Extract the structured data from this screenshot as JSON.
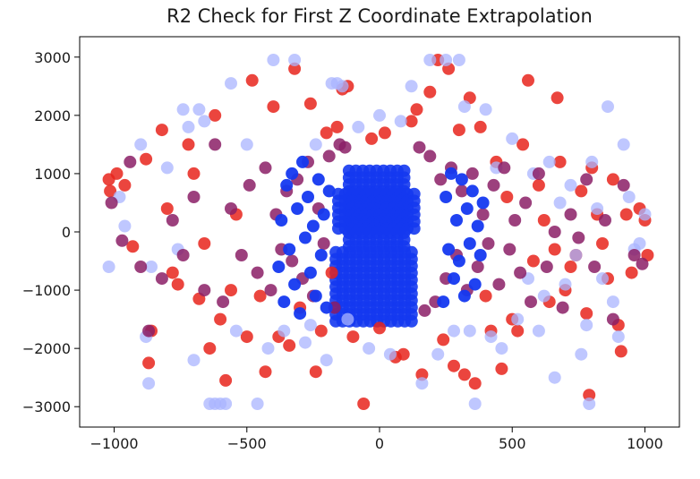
{
  "chart_data": {
    "type": "scatter",
    "title": "R2 Check for First Z Coordinate Extrapolation",
    "xlabel": "",
    "ylabel": "",
    "xlim": [
      -1130,
      1130
    ],
    "ylim": [
      -3350,
      3350
    ],
    "xticks": [
      -1000,
      -500,
      0,
      500,
      1000
    ],
    "yticks": [
      -3000,
      -2000,
      -1000,
      0,
      1000,
      2000,
      3000
    ],
    "xtick_labels": [
      "−1000",
      "−500",
      "0",
      "500",
      "1000"
    ],
    "ytick_labels": [
      "−3000",
      "−2000",
      "−1000",
      "0",
      "1000",
      "2000",
      "3000"
    ],
    "grid": false,
    "legend": "none",
    "colors": {
      "series_a": "#e8251c",
      "series_b": "#1438f0",
      "series_b_faint": "#aab4ff",
      "overlap": "#8b1f66"
    },
    "series": [
      {
        "color": "#e8251c",
        "alpha": 0.85,
        "points": [
          [
            -1020,
            900
          ],
          [
            -1015,
            700
          ],
          [
            -990,
            1000
          ],
          [
            -960,
            800
          ],
          [
            -930,
            -250
          ],
          [
            -880,
            1250
          ],
          [
            -860,
            -1700
          ],
          [
            -870,
            -2250
          ],
          [
            -820,
            1750
          ],
          [
            -800,
            400
          ],
          [
            -780,
            -700
          ],
          [
            -760,
            -900
          ],
          [
            -720,
            1500
          ],
          [
            -700,
            1000
          ],
          [
            -680,
            -1150
          ],
          [
            -660,
            -200
          ],
          [
            -640,
            -2000
          ],
          [
            -620,
            2000
          ],
          [
            -600,
            -1500
          ],
          [
            -580,
            -2550
          ],
          [
            -560,
            -1000
          ],
          [
            -540,
            300
          ],
          [
            -500,
            -1800
          ],
          [
            -480,
            2600
          ],
          [
            -450,
            -1100
          ],
          [
            -430,
            -2400
          ],
          [
            -400,
            2150
          ],
          [
            -380,
            -1800
          ],
          [
            -340,
            -1950
          ],
          [
            -320,
            2800
          ],
          [
            -300,
            -1300
          ],
          [
            -260,
            2200
          ],
          [
            -240,
            -2400
          ],
          [
            -220,
            -1700
          ],
          [
            -200,
            1700
          ],
          [
            -180,
            -700
          ],
          [
            -160,
            1800
          ],
          [
            -140,
            2450
          ],
          [
            -120,
            2500
          ],
          [
            -100,
            -1800
          ],
          [
            -60,
            -2950
          ],
          [
            -30,
            1600
          ],
          [
            0,
            -1650
          ],
          [
            20,
            1700
          ],
          [
            60,
            -2150
          ],
          [
            90,
            -2100
          ],
          [
            120,
            1900
          ],
          [
            140,
            2100
          ],
          [
            160,
            -2450
          ],
          [
            190,
            2400
          ],
          [
            220,
            2950
          ],
          [
            240,
            -1850
          ],
          [
            260,
            2800
          ],
          [
            280,
            -2300
          ],
          [
            300,
            1750
          ],
          [
            320,
            -2450
          ],
          [
            340,
            2300
          ],
          [
            360,
            -2600
          ],
          [
            380,
            1800
          ],
          [
            400,
            -1100
          ],
          [
            420,
            -1700
          ],
          [
            440,
            1200
          ],
          [
            460,
            -2350
          ],
          [
            480,
            600
          ],
          [
            500,
            -1500
          ],
          [
            520,
            -1700
          ],
          [
            540,
            1500
          ],
          [
            560,
            2600
          ],
          [
            580,
            -500
          ],
          [
            600,
            800
          ],
          [
            620,
            200
          ],
          [
            640,
            -1200
          ],
          [
            660,
            -300
          ],
          [
            670,
            2300
          ],
          [
            680,
            1200
          ],
          [
            700,
            -1000
          ],
          [
            720,
            -600
          ],
          [
            740,
            -400
          ],
          [
            760,
            700
          ],
          [
            780,
            -1400
          ],
          [
            790,
            -2800
          ],
          [
            800,
            1100
          ],
          [
            820,
            300
          ],
          [
            840,
            -200
          ],
          [
            860,
            -800
          ],
          [
            880,
            900
          ],
          [
            900,
            -1600
          ],
          [
            910,
            -2050
          ],
          [
            930,
            300
          ],
          [
            950,
            -700
          ],
          [
            980,
            400
          ],
          [
            1000,
            200
          ],
          [
            1010,
            -400
          ]
        ]
      },
      {
        "color": "#aab4ff",
        "alpha": 0.75,
        "points": [
          [
            -1020,
            -600
          ],
          [
            -980,
            600
          ],
          [
            -960,
            100
          ],
          [
            -900,
            1500
          ],
          [
            -880,
            -1800
          ],
          [
            -870,
            -2600
          ],
          [
            -860,
            -600
          ],
          [
            -800,
            1100
          ],
          [
            -760,
            -300
          ],
          [
            -740,
            2100
          ],
          [
            -720,
            1800
          ],
          [
            -700,
            -2200
          ],
          [
            -680,
            2100
          ],
          [
            -660,
            1900
          ],
          [
            -640,
            -2950
          ],
          [
            -620,
            -2950
          ],
          [
            -600,
            -2950
          ],
          [
            -580,
            -2950
          ],
          [
            -560,
            2550
          ],
          [
            -540,
            -1700
          ],
          [
            -500,
            1500
          ],
          [
            -460,
            -2950
          ],
          [
            -420,
            -2000
          ],
          [
            -400,
            2950
          ],
          [
            -360,
            -1700
          ],
          [
            -320,
            2950
          ],
          [
            -280,
            -1900
          ],
          [
            -260,
            -1600
          ],
          [
            -240,
            1500
          ],
          [
            -200,
            -2200
          ],
          [
            -180,
            2550
          ],
          [
            -160,
            2550
          ],
          [
            -140,
            2500
          ],
          [
            -120,
            -1500
          ],
          [
            -80,
            1800
          ],
          [
            -40,
            -2000
          ],
          [
            0,
            2000
          ],
          [
            40,
            -2100
          ],
          [
            80,
            1900
          ],
          [
            120,
            2500
          ],
          [
            160,
            -2600
          ],
          [
            190,
            2950
          ],
          [
            220,
            -2100
          ],
          [
            250,
            2950
          ],
          [
            280,
            -1700
          ],
          [
            300,
            2950
          ],
          [
            320,
            2150
          ],
          [
            340,
            -1700
          ],
          [
            360,
            -2950
          ],
          [
            400,
            2100
          ],
          [
            420,
            -1800
          ],
          [
            440,
            1100
          ],
          [
            460,
            -2000
          ],
          [
            500,
            1600
          ],
          [
            520,
            -1500
          ],
          [
            560,
            -800
          ],
          [
            580,
            1000
          ],
          [
            600,
            -1700
          ],
          [
            620,
            -1100
          ],
          [
            640,
            1200
          ],
          [
            660,
            -2500
          ],
          [
            680,
            500
          ],
          [
            700,
            -900
          ],
          [
            720,
            800
          ],
          [
            740,
            -400
          ],
          [
            760,
            -2100
          ],
          [
            780,
            -1600
          ],
          [
            790,
            -2950
          ],
          [
            800,
            1200
          ],
          [
            820,
            400
          ],
          [
            840,
            -800
          ],
          [
            860,
            2150
          ],
          [
            880,
            -1200
          ],
          [
            900,
            -1800
          ],
          [
            920,
            1500
          ],
          [
            940,
            600
          ],
          [
            960,
            -300
          ],
          [
            980,
            -200
          ],
          [
            1000,
            300
          ]
        ]
      },
      {
        "color": "#8b1f66",
        "alpha": 0.85,
        "points": [
          [
            -1010,
            500
          ],
          [
            -970,
            -150
          ],
          [
            -940,
            1200
          ],
          [
            -900,
            -600
          ],
          [
            -870,
            -1700
          ],
          [
            -820,
            -800
          ],
          [
            -780,
            200
          ],
          [
            -740,
            -400
          ],
          [
            -700,
            600
          ],
          [
            -660,
            -1000
          ],
          [
            -620,
            1500
          ],
          [
            -590,
            -1200
          ],
          [
            -560,
            400
          ],
          [
            -520,
            -400
          ],
          [
            -490,
            800
          ],
          [
            -460,
            -700
          ],
          [
            -430,
            1100
          ],
          [
            -410,
            -1000
          ],
          [
            -390,
            300
          ],
          [
            -370,
            -300
          ],
          [
            -350,
            700
          ],
          [
            -330,
            -500
          ],
          [
            -310,
            900
          ],
          [
            -290,
            -800
          ],
          [
            -270,
            1200
          ],
          [
            -250,
            -1100
          ],
          [
            -230,
            400
          ],
          [
            -210,
            -200
          ],
          [
            -190,
            1300
          ],
          [
            -170,
            -1300
          ],
          [
            -150,
            1500
          ],
          [
            -130,
            1450
          ],
          [
            150,
            1450
          ],
          [
            170,
            -1350
          ],
          [
            190,
            1300
          ],
          [
            210,
            -1200
          ],
          [
            230,
            900
          ],
          [
            250,
            -800
          ],
          [
            270,
            1100
          ],
          [
            290,
            -400
          ],
          [
            310,
            700
          ],
          [
            330,
            -1000
          ],
          [
            350,
            1000
          ],
          [
            370,
            -600
          ],
          [
            390,
            300
          ],
          [
            410,
            -200
          ],
          [
            430,
            800
          ],
          [
            450,
            -900
          ],
          [
            470,
            1100
          ],
          [
            490,
            -300
          ],
          [
            510,
            200
          ],
          [
            530,
            -700
          ],
          [
            550,
            500
          ],
          [
            570,
            -1200
          ],
          [
            600,
            1000
          ],
          [
            630,
            -600
          ],
          [
            660,
            0
          ],
          [
            690,
            -1300
          ],
          [
            720,
            300
          ],
          [
            750,
            -100
          ],
          [
            780,
            900
          ],
          [
            810,
            -600
          ],
          [
            850,
            200
          ],
          [
            880,
            -1500
          ],
          [
            920,
            800
          ],
          [
            960,
            -400
          ],
          [
            990,
            -550
          ]
        ]
      },
      {
        "color": "#1438f0",
        "alpha": 0.95,
        "points": [
          [
            -380,
            -600
          ],
          [
            -370,
            200
          ],
          [
            -360,
            -1200
          ],
          [
            -350,
            800
          ],
          [
            -340,
            -300
          ],
          [
            -330,
            1000
          ],
          [
            -320,
            -900
          ],
          [
            -310,
            400
          ],
          [
            -300,
            -1400
          ],
          [
            -290,
            1200
          ],
          [
            -280,
            -100
          ],
          [
            -270,
            600
          ],
          [
            -260,
            -700
          ],
          [
            -250,
            100
          ],
          [
            -240,
            -1100
          ],
          [
            -230,
            900
          ],
          [
            -220,
            -400
          ],
          [
            -210,
            300
          ],
          [
            -200,
            -1300
          ],
          [
            -190,
            700
          ],
          [
            240,
            -1200
          ],
          [
            250,
            600
          ],
          [
            260,
            -300
          ],
          [
            270,
            1000
          ],
          [
            280,
            -800
          ],
          [
            290,
            200
          ],
          [
            300,
            -500
          ],
          [
            310,
            900
          ],
          [
            320,
            -1100
          ],
          [
            330,
            400
          ],
          [
            340,
            -200
          ],
          [
            350,
            700
          ],
          [
            360,
            -900
          ],
          [
            370,
            100
          ],
          [
            380,
            -400
          ],
          [
            390,
            500
          ]
        ]
      }
    ],
    "dense_regions": [
      {
        "color": "#1438f0",
        "x": [
          -165,
          140
        ],
        "y": [
          -1600,
          -350
        ]
      },
      {
        "color": "#1438f0",
        "x": [
          -115,
          115
        ],
        "y": [
          -350,
          1050
        ]
      },
      {
        "color": "#1438f0",
        "x": [
          -155,
          150
        ],
        "y": [
          0,
          650
        ]
      }
    ]
  }
}
